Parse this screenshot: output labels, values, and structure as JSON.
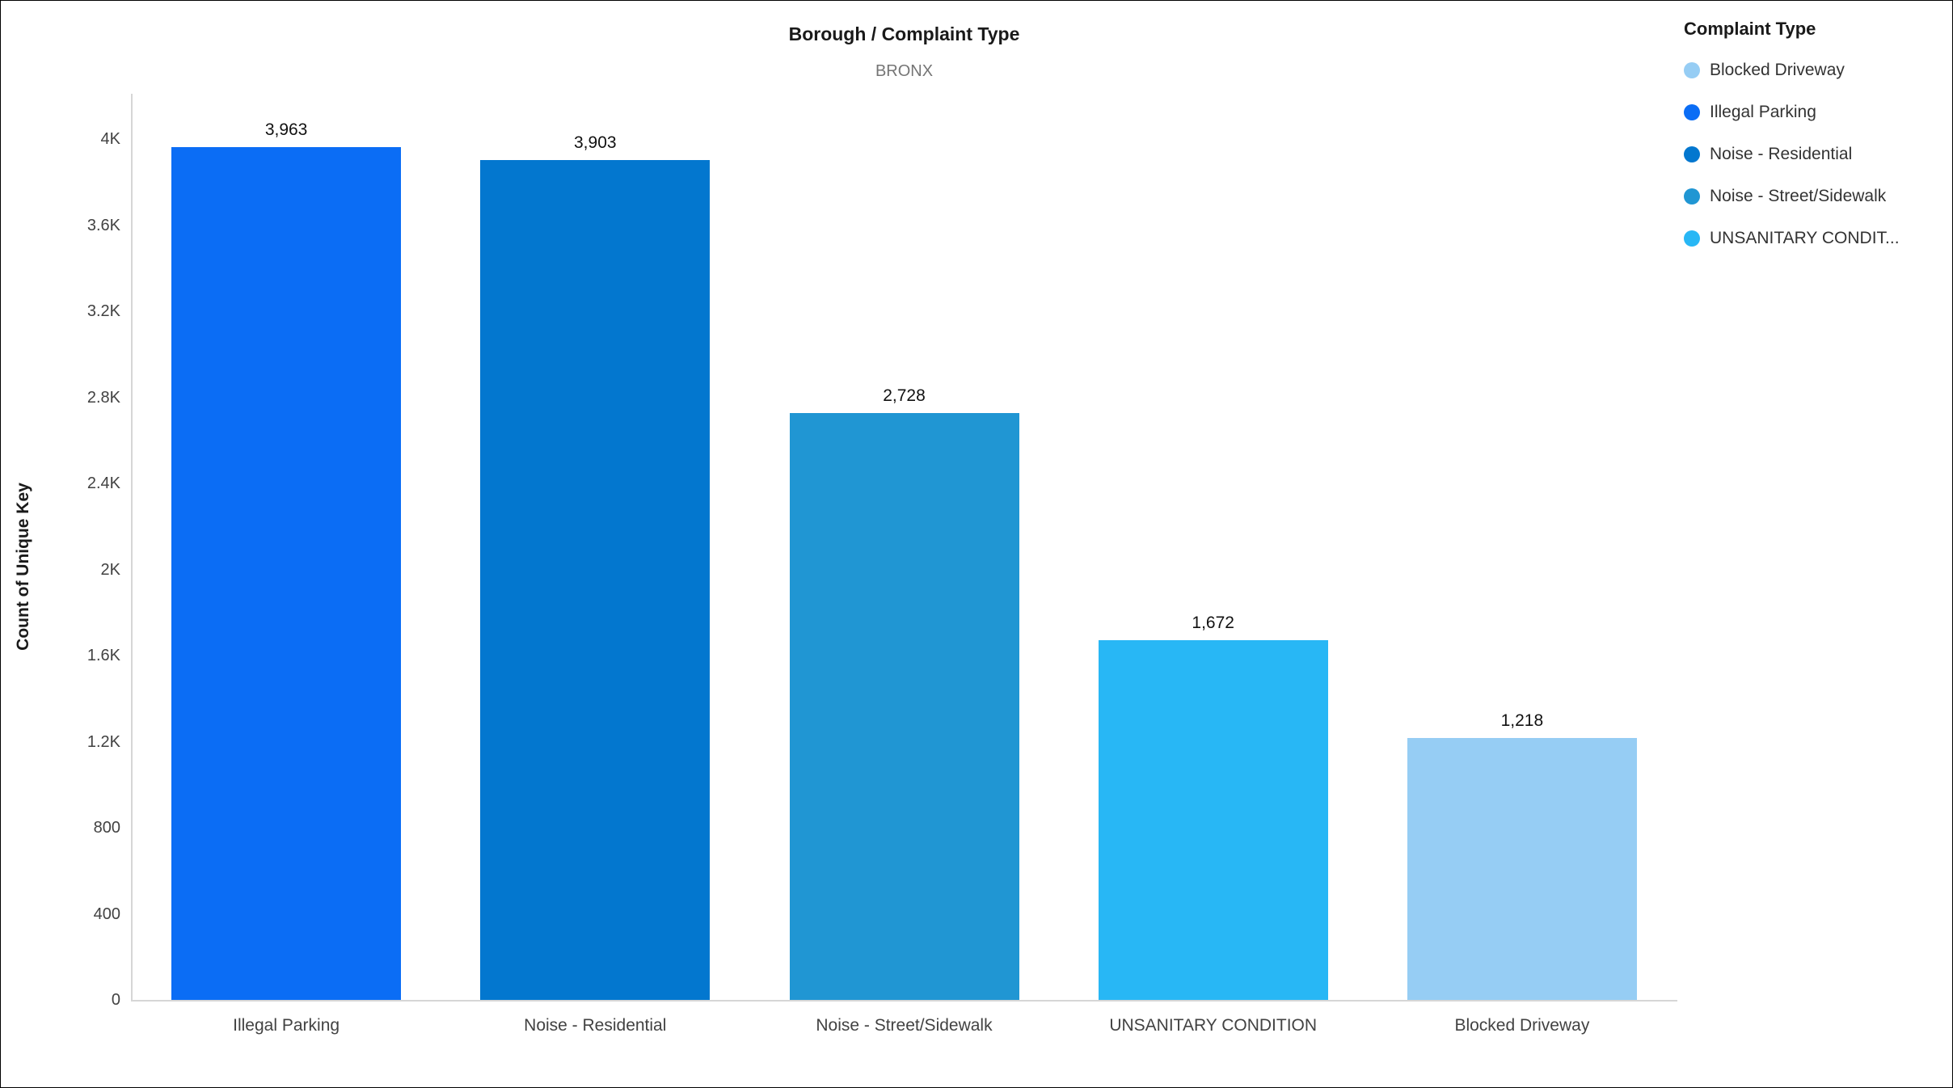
{
  "title": "Borough / Complaint Type",
  "subtitle": "BRONX",
  "legend": {
    "title": "Complaint Type",
    "items": [
      {
        "label": "Blocked Driveway",
        "color": "#96CDF4"
      },
      {
        "label": "Illegal Parking",
        "color": "#0B6DF5"
      },
      {
        "label": "Noise - Residential",
        "color": "#0377CF"
      },
      {
        "label": "Noise - Street/Sidewalk",
        "color": "#2096D3"
      },
      {
        "label": "UNSANITARY CONDIT...",
        "color": "#28B7F5"
      }
    ]
  },
  "chart_data": {
    "type": "bar",
    "title": "Borough / Complaint Type",
    "subtitle": "BRONX",
    "xlabel": "",
    "ylabel": "Count of Unique Key",
    "categories": [
      "Illegal Parking",
      "Noise - Residential",
      "Noise - Street/Sidewalk",
      "UNSANITARY CONDITION",
      "Blocked Driveway"
    ],
    "values": [
      3963,
      3903,
      2728,
      1672,
      1218
    ],
    "value_labels": [
      "3,963",
      "3,903",
      "2,728",
      "1,672",
      "1,218"
    ],
    "bar_colors": [
      "#0B6DF5",
      "#0377CF",
      "#2096D3",
      "#28B7F5",
      "#96CDF4"
    ],
    "ylim": [
      0,
      4000
    ],
    "yticks": [
      0,
      400,
      800,
      1200,
      1600,
      2000,
      2400,
      2800,
      3200,
      3600,
      4000
    ],
    "ytick_labels": [
      "0",
      "400",
      "800",
      "1.2K",
      "1.6K",
      "2K",
      "2.4K",
      "2.8K",
      "3.2K",
      "3.6K",
      "4K"
    ],
    "grid": false,
    "legend_position": "top-right",
    "legend_title": "Complaint Type"
  }
}
